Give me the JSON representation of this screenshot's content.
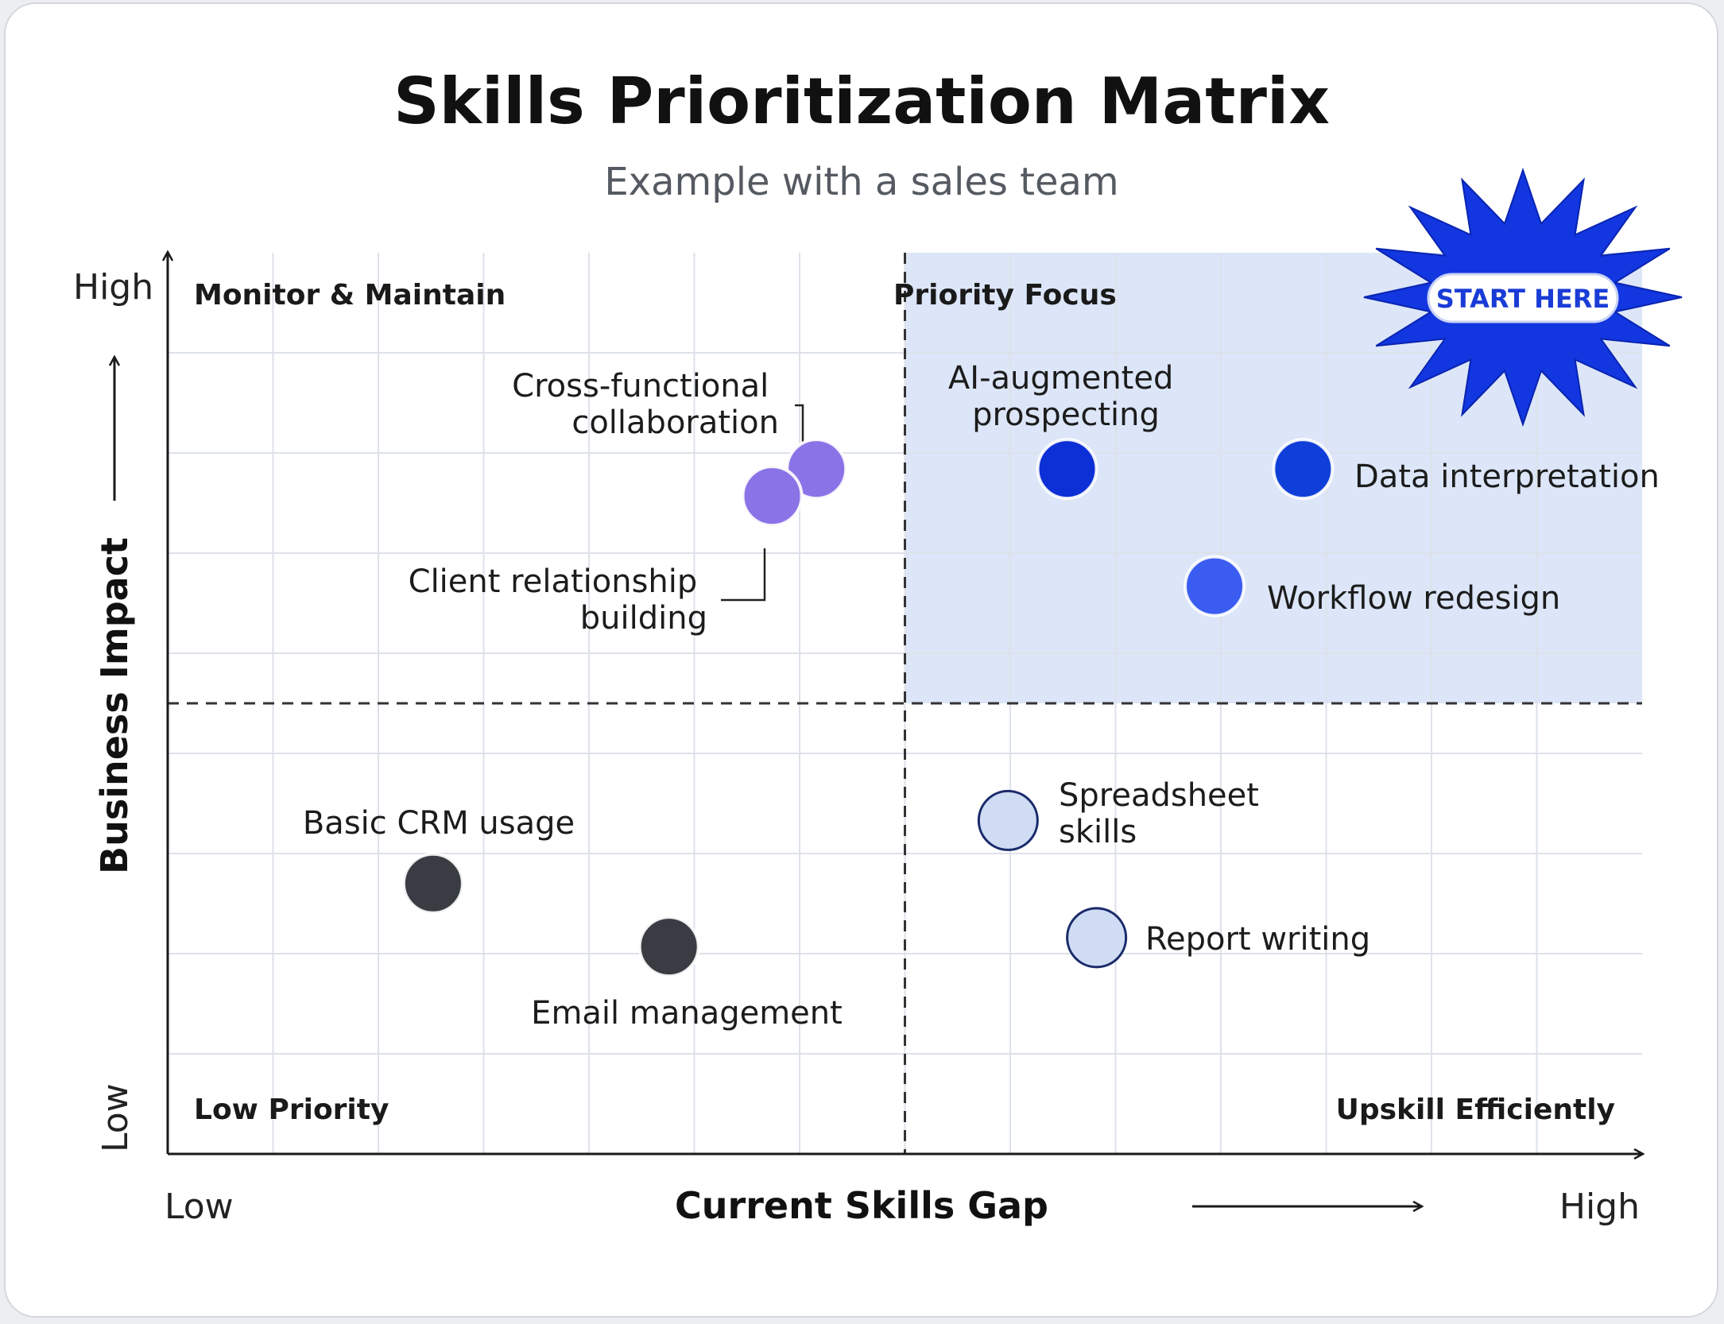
{
  "chart_data": {
    "type": "scatter",
    "title": "Skills Prioritization Matrix",
    "subtitle": "Example with a sales team",
    "xlabel": "Current Skills Gap",
    "ylabel": "Business Impact",
    "x_low_label": "Low",
    "x_high_label": "High",
    "y_low_label": "Low",
    "y_high_label": "High",
    "xlim": [
      0,
      10
    ],
    "ylim": [
      0,
      10
    ],
    "grid": true,
    "quadrants": {
      "top_left": "Monitor & Maintain",
      "top_right": "Priority Focus",
      "bottom_left": "Low Priority",
      "bottom_right": "Upskill Efficiently"
    },
    "badge": "START HERE",
    "points": [
      {
        "label": "Cross-functional collaboration",
        "x": 4.4,
        "y": 7.6,
        "color": "#8a73e6"
      },
      {
        "label": "Client relationship building",
        "x": 4.1,
        "y": 7.3,
        "color": "#8a73e6"
      },
      {
        "label": "AI-augmented prospecting",
        "x": 6.1,
        "y": 7.6,
        "color": "#0d2fd6"
      },
      {
        "label": "Data interpretation",
        "x": 7.7,
        "y": 7.6,
        "color": "#0f3fd8"
      },
      {
        "label": "Workflow redesign",
        "x": 7.1,
        "y": 6.3,
        "color": "#3a5cf0"
      },
      {
        "label": "Basic CRM usage",
        "x": 1.8,
        "y": 3.0,
        "color": "#3a3c44"
      },
      {
        "label": "Email management",
        "x": 3.4,
        "y": 2.3,
        "color": "#3a3c44"
      },
      {
        "label": "Spreadsheet skills",
        "x": 5.7,
        "y": 3.7,
        "color": "#cfdcf4"
      },
      {
        "label": "Report writing",
        "x": 6.3,
        "y": 2.4,
        "color": "#cfdcf4"
      }
    ]
  }
}
